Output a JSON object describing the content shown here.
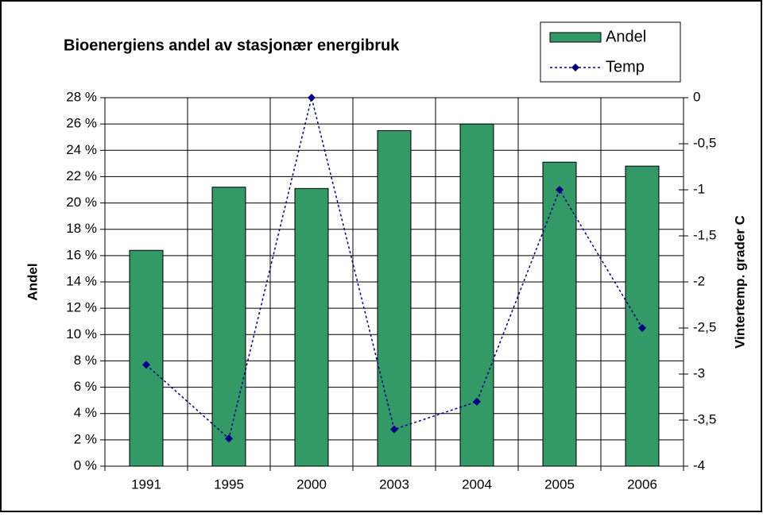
{
  "chart_data": {
    "type": "bar_line",
    "title": "Bioenergiens andel av stasjonær energibruk",
    "categories": [
      "1991",
      "1995",
      "2000",
      "2003",
      "2004",
      "2005",
      "2006"
    ],
    "series": [
      {
        "name": "Andel",
        "type": "bar",
        "color": "#339966",
        "values": [
          16.4,
          21.2,
          21.1,
          25.5,
          26.0,
          23.1,
          22.8
        ]
      },
      {
        "name": "Temp",
        "type": "line",
        "axis": "y2",
        "color": "#000080",
        "values": [
          -2.9,
          -3.7,
          0,
          -3.6,
          -3.3,
          -1.0,
          -2.5
        ]
      }
    ],
    "ylabel": "Andel",
    "y2label": "Vintertemp. grader C",
    "ylim": [
      0,
      28
    ],
    "yticks": [
      {
        "value": 0,
        "label": "0 %"
      },
      {
        "value": 2,
        "label": "2 %"
      },
      {
        "value": 4,
        "label": "4 %"
      },
      {
        "value": 6,
        "label": "6 %"
      },
      {
        "value": 8,
        "label": "8 %"
      },
      {
        "value": 10,
        "label": "10 %"
      },
      {
        "value": 12,
        "label": "12 %"
      },
      {
        "value": 14,
        "label": "14 %"
      },
      {
        "value": 16,
        "label": "16 %"
      },
      {
        "value": 18,
        "label": "18 %"
      },
      {
        "value": 20,
        "label": "20 %"
      },
      {
        "value": 22,
        "label": "22 %"
      },
      {
        "value": 24,
        "label": "24 %"
      },
      {
        "value": 26,
        "label": "26 %"
      },
      {
        "value": 28,
        "label": "28 %"
      }
    ],
    "y2lim": [
      -4,
      0
    ],
    "y2ticks": [
      -4,
      {
        "value": -3.5,
        "label": "-3,5"
      },
      -3,
      {
        "value": -2.5,
        "label": "-2,5"
      },
      -2,
      {
        "value": -1.5,
        "label": "-1,5"
      },
      -1,
      {
        "value": -0.5,
        "label": "-0,5"
      },
      0
    ],
    "grid": true,
    "legend": "top-right"
  }
}
